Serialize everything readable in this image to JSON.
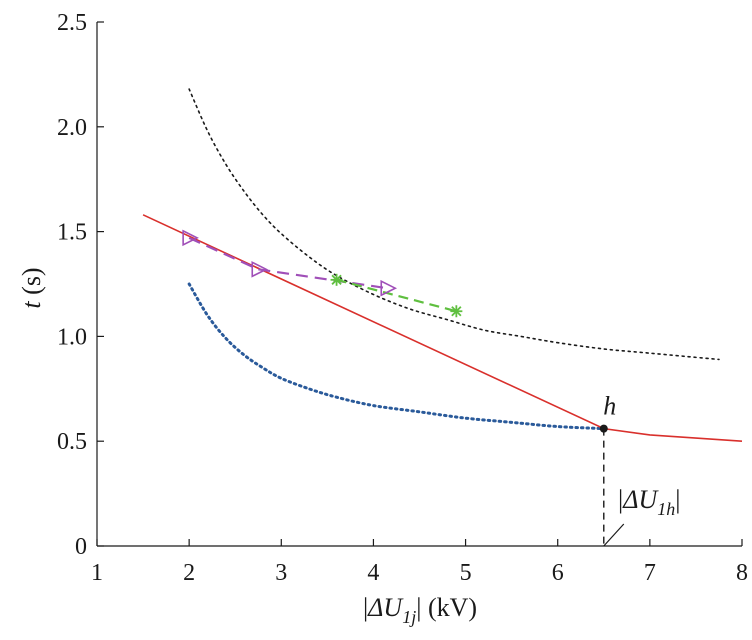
{
  "chart_data": {
    "type": "line",
    "xlabel": {
      "prefix": "ΔU",
      "sub": "1j",
      "unit": "(kV)"
    },
    "ylabel": {
      "var": "t",
      "unit": "(s)"
    },
    "xlim": [
      1,
      8
    ],
    "ylim": [
      0,
      2.5
    ],
    "xticks": [
      "1",
      "2",
      "3",
      "4",
      "5",
      "6",
      "7",
      "8"
    ],
    "yticks": [
      "0",
      "0.5",
      "1.0",
      "1.5",
      "2.0",
      "2.5"
    ],
    "grid": false,
    "series": [
      {
        "style": "dotted-black",
        "color": "#1a1a1a",
        "x": [
          2.0,
          2.2,
          2.4,
          2.6,
          2.8,
          3.0,
          3.3,
          3.6,
          4.0,
          4.4,
          4.8,
          5.2,
          5.6,
          6.0,
          6.5,
          7.0,
          7.5,
          7.75
        ],
        "y": [
          2.18,
          1.98,
          1.82,
          1.69,
          1.58,
          1.49,
          1.38,
          1.29,
          1.2,
          1.13,
          1.08,
          1.03,
          1.0,
          0.97,
          0.94,
          0.92,
          0.9,
          0.89
        ]
      },
      {
        "style": "dotted-blue",
        "color": "#2a5a9a",
        "x": [
          2.0,
          2.2,
          2.4,
          2.6,
          2.8,
          3.0,
          3.3,
          3.6,
          4.0,
          4.5,
          5.0,
          5.5,
          6.0,
          6.5
        ],
        "y": [
          1.25,
          1.1,
          0.99,
          0.91,
          0.85,
          0.8,
          0.75,
          0.71,
          0.67,
          0.64,
          0.61,
          0.59,
          0.57,
          0.56
        ]
      },
      {
        "style": "solid-red",
        "color": "#d9302c",
        "x": [
          1.5,
          6.5,
          7.0,
          7.5,
          8.0
        ],
        "y": [
          1.58,
          0.56,
          0.53,
          0.515,
          0.5
        ]
      },
      {
        "style": "dashed-purple",
        "color": "#a04fb8",
        "marker": "triangle-right",
        "x": [
          2.0,
          2.75,
          4.15
        ],
        "y": [
          1.47,
          1.32,
          1.23
        ]
      },
      {
        "style": "dashed-green",
        "color": "#5fbf3f",
        "marker": "star",
        "x": [
          3.6,
          4.9
        ],
        "y": [
          1.27,
          1.12
        ]
      }
    ],
    "point_h": {
      "label": "h",
      "x": 6.5,
      "y": 0.56
    },
    "annotation": {
      "prefix": "ΔU",
      "sub": "1h"
    }
  }
}
